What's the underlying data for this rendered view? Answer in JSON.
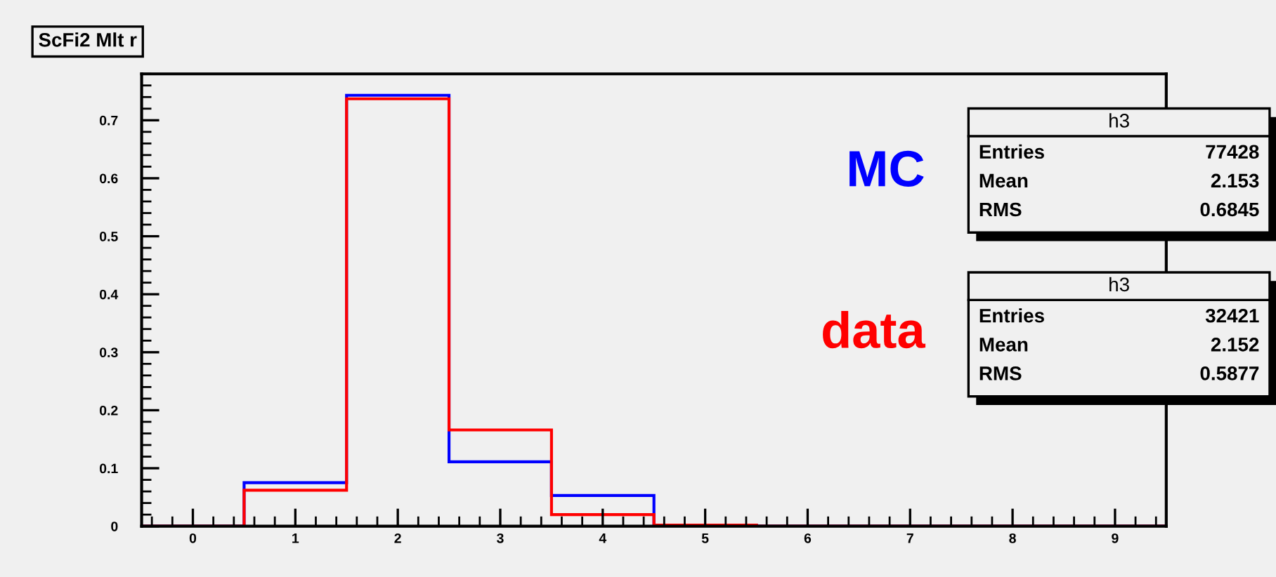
{
  "chart_data": {
    "type": "histogram",
    "title": "ScFi2 Mlt r",
    "bins": [
      -0.5,
      0.5,
      1.5,
      2.5,
      3.5,
      4.5,
      5.5,
      6.5,
      7.5,
      8.5,
      9.5
    ],
    "series": [
      {
        "name": "MC",
        "color": "#0000ff",
        "values": [
          0,
          0.075,
          0.743,
          0.111,
          0.053,
          0.002,
          0,
          0,
          0,
          0
        ]
      },
      {
        "name": "data",
        "color": "#ff0000",
        "values": [
          0,
          0.062,
          0.737,
          0.166,
          0.02,
          0.002,
          0,
          0,
          0,
          0
        ]
      }
    ],
    "xlim": [
      -0.5,
      9.5
    ],
    "xticks": [
      0,
      1,
      2,
      3,
      4,
      5,
      6,
      7,
      8,
      9
    ],
    "ylim": [
      0,
      0.78
    ],
    "yticks": [
      0,
      0.1,
      0.2,
      0.3,
      0.4,
      0.5,
      0.6,
      0.7
    ],
    "grid": false,
    "legend": false,
    "annotations": [
      "h3",
      "Entries",
      "77428",
      "Mean",
      "2.153",
      "RMS",
      "0.6845",
      "h3",
      "Entries",
      "32421",
      "Mean",
      "2.152",
      "RMS",
      "0.5877"
    ]
  }
}
